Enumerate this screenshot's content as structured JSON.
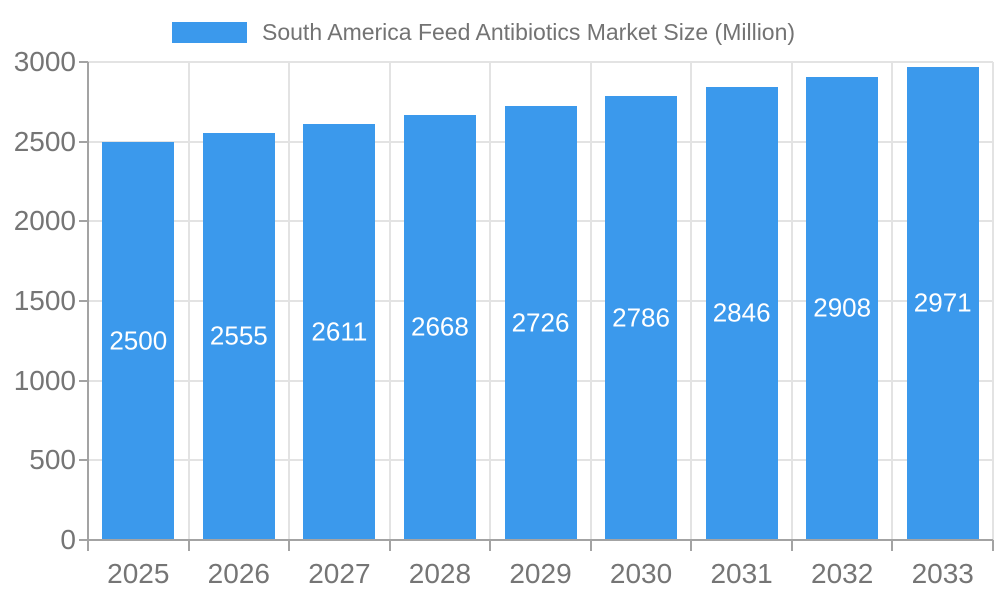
{
  "chart_data": {
    "type": "bar",
    "title": "South America Feed Antibiotics Market Size (Million)",
    "legend": {
      "label": "South America Feed Antibiotics Market Size (Million)",
      "position": "top"
    },
    "categories": [
      "2025",
      "2026",
      "2027",
      "2028",
      "2029",
      "2030",
      "2031",
      "2032",
      "2033"
    ],
    "values": [
      2500,
      2555,
      2611,
      2668,
      2726,
      2786,
      2846,
      2908,
      2971
    ],
    "xlabel": "",
    "ylabel": "",
    "ylim": [
      0,
      3000
    ],
    "y_ticks": [
      0,
      500,
      1000,
      1500,
      2000,
      2500,
      3000
    ],
    "grid": true,
    "value_labels_inside_bars": true,
    "colors": {
      "bar": "#3B99EC",
      "value_label": "#FFFFFF",
      "axis_tick_label": "#757575",
      "legend_text": "#737373",
      "axis_line": "#A3A3A3",
      "gridline": "#E3E3E3",
      "background": "#FFFFFF"
    }
  }
}
